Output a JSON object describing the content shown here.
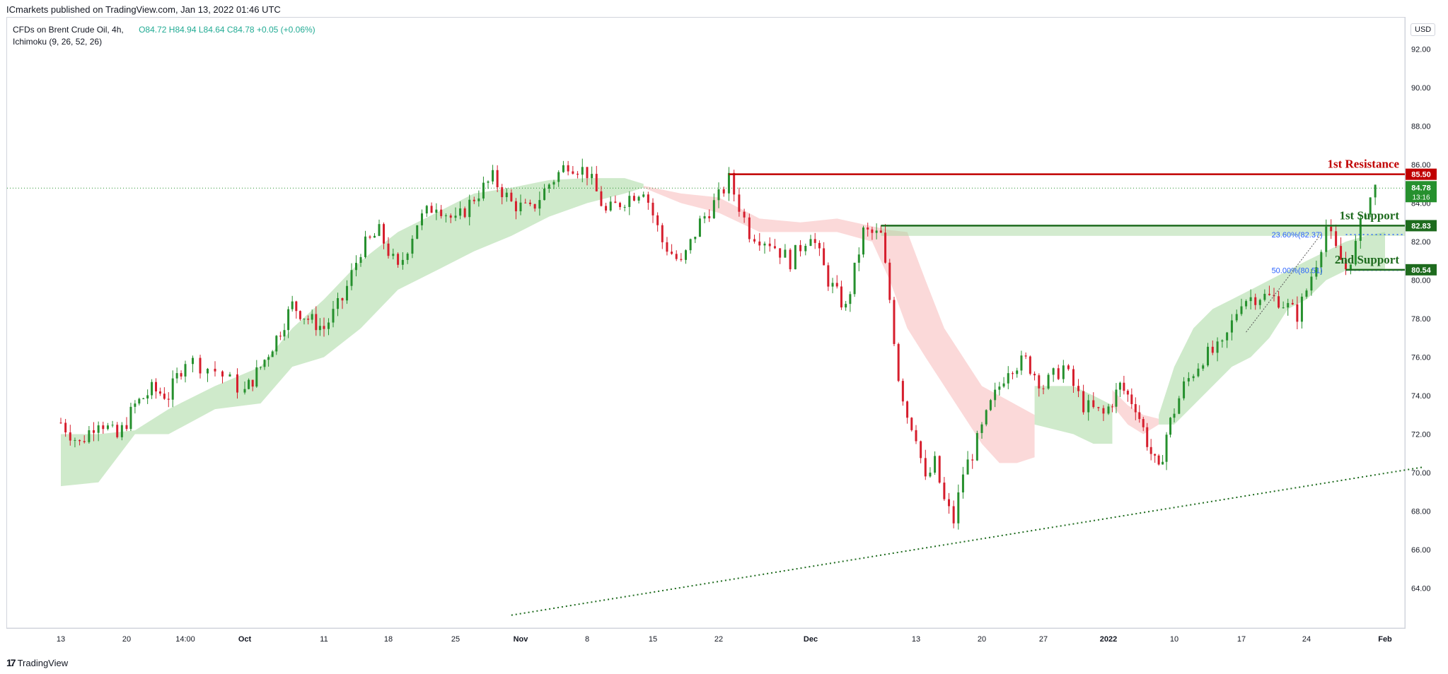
{
  "attribution": "ICmarkets published on TradingView.com, Jan 13, 2022 01:46 UTC",
  "legend": {
    "symbol_line": "CFDs on Brent Crude Oil, 4h,",
    "indicator_line": "Ichimoku (9, 26, 52, 26)",
    "open": "O84.72",
    "high": "H84.94",
    "low": "L84.64",
    "close": "C84.78",
    "change": "+0.05 (+0.06%)"
  },
  "currency": "USD",
  "footer": {
    "brand": "TradingView"
  },
  "colors": {
    "up": "#22ab94",
    "down": "#f23645",
    "candle_up": "#26902e",
    "candle_down": "#d61e2d",
    "resistance": "#c00000",
    "support": "#1e6b1e",
    "cloud_green": "#a7d8a0",
    "cloud_red": "#f7b9b9",
    "fib": "#2962ff"
  },
  "chart_data": {
    "type": "candlestick",
    "title": "CFDs on Brent Crude Oil, 4h",
    "ylim": [
      62.6,
      93.2
    ],
    "y_ticks": [
      "92.00",
      "90.00",
      "88.00",
      "86.00",
      "84.00",
      "82.00",
      "80.00",
      "78.00",
      "76.00",
      "74.00",
      "72.00",
      "70.00",
      "68.00",
      "66.00",
      "64.00"
    ],
    "y_tick_values": [
      92,
      90,
      88,
      86,
      84,
      82,
      80,
      78,
      76,
      74,
      72,
      70,
      68,
      66,
      64
    ],
    "x_labels": [
      "13",
      "20",
      "14:00",
      "Oct",
      "11",
      "18",
      "25",
      "Nov",
      "8",
      "15",
      "22",
      "Dec",
      "13",
      "20",
      "27",
      "2022",
      "10",
      "17",
      "24",
      "Feb"
    ],
    "bold_x_labels": [
      "Oct",
      "Nov",
      "Dec",
      "2022",
      "Feb"
    ],
    "x_range_days": [
      0,
      146
    ],
    "x_label_days": [
      0,
      7,
      14,
      18,
      28,
      35,
      42,
      49,
      56,
      63,
      70,
      79,
      91,
      98,
      105,
      111.5,
      120,
      127,
      134,
      142
    ],
    "series_close_outline": [
      {
        "d": 0,
        "v": 72.6
      },
      {
        "d": 2,
        "v": 71.5
      },
      {
        "d": 4,
        "v": 72.8
      },
      {
        "d": 6,
        "v": 71.8
      },
      {
        "d": 8,
        "v": 73.5
      },
      {
        "d": 10,
        "v": 74.3
      },
      {
        "d": 12,
        "v": 74.0
      },
      {
        "d": 14,
        "v": 75.9
      },
      {
        "d": 16,
        "v": 75.3
      },
      {
        "d": 18,
        "v": 74.2
      },
      {
        "d": 20,
        "v": 75.5
      },
      {
        "d": 22,
        "v": 77.0
      },
      {
        "d": 24,
        "v": 78.7
      },
      {
        "d": 26,
        "v": 78.0
      },
      {
        "d": 28,
        "v": 77.5
      },
      {
        "d": 30,
        "v": 79.0
      },
      {
        "d": 32,
        "v": 81.6
      },
      {
        "d": 34,
        "v": 82.5
      },
      {
        "d": 36,
        "v": 80.5
      },
      {
        "d": 38,
        "v": 83.0
      },
      {
        "d": 40,
        "v": 84.0
      },
      {
        "d": 42,
        "v": 83.0
      },
      {
        "d": 44,
        "v": 84.3
      },
      {
        "d": 46,
        "v": 85.3
      },
      {
        "d": 48,
        "v": 84.0
      },
      {
        "d": 50,
        "v": 83.6
      },
      {
        "d": 52,
        "v": 85.0
      },
      {
        "d": 54,
        "v": 86.1
      },
      {
        "d": 56,
        "v": 85.6
      },
      {
        "d": 58,
        "v": 83.5
      },
      {
        "d": 60,
        "v": 84.2
      },
      {
        "d": 62,
        "v": 84.8
      },
      {
        "d": 64,
        "v": 82.0
      },
      {
        "d": 66,
        "v": 80.8
      },
      {
        "d": 68,
        "v": 83.0
      },
      {
        "d": 70,
        "v": 84.3
      },
      {
        "d": 71,
        "v": 85.2
      },
      {
        "d": 73,
        "v": 82.5
      },
      {
        "d": 75,
        "v": 82.0
      },
      {
        "d": 77,
        "v": 81.0
      },
      {
        "d": 79,
        "v": 82.5
      },
      {
        "d": 81,
        "v": 80.0
      },
      {
        "d": 83,
        "v": 78.5
      },
      {
        "d": 85,
        "v": 82.5
      },
      {
        "d": 87,
        "v": 82.3
      },
      {
        "d": 88,
        "v": 79.0
      },
      {
        "d": 89,
        "v": 75.0
      },
      {
        "d": 90,
        "v": 73.0
      },
      {
        "d": 91,
        "v": 72.0
      },
      {
        "d": 92,
        "v": 69.5
      },
      {
        "d": 93,
        "v": 70.5
      },
      {
        "d": 94,
        "v": 68.5
      },
      {
        "d": 95,
        "v": 67.5
      },
      {
        "d": 96,
        "v": 70.0
      },
      {
        "d": 97,
        "v": 71.0
      },
      {
        "d": 99,
        "v": 73.5
      },
      {
        "d": 101,
        "v": 75.5
      },
      {
        "d": 103,
        "v": 75.8
      },
      {
        "d": 105,
        "v": 74.5
      },
      {
        "d": 107,
        "v": 75.5
      },
      {
        "d": 109,
        "v": 73.5
      },
      {
        "d": 111,
        "v": 73.0
      },
      {
        "d": 113,
        "v": 74.5
      },
      {
        "d": 115,
        "v": 73.5
      },
      {
        "d": 117,
        "v": 71.0
      },
      {
        "d": 118,
        "v": 70.0
      },
      {
        "d": 119,
        "v": 72.0
      },
      {
        "d": 121,
        "v": 74.5
      },
      {
        "d": 123,
        "v": 76.0
      },
      {
        "d": 125,
        "v": 76.5
      },
      {
        "d": 127,
        "v": 79.0
      },
      {
        "d": 129,
        "v": 79.2
      },
      {
        "d": 131,
        "v": 79.0
      },
      {
        "d": 133,
        "v": 78.2
      },
      {
        "d": 134,
        "v": 79.5
      },
      {
        "d": 135,
        "v": 81.0
      },
      {
        "d": 136,
        "v": 82.8
      },
      {
        "d": 137,
        "v": 81.5
      },
      {
        "d": 138,
        "v": 80.6
      },
      {
        "d": 139,
        "v": 81.8
      },
      {
        "d": 140,
        "v": 83.8
      },
      {
        "d": 141,
        "v": 84.78
      }
    ],
    "ichimoku_cloud_green": [
      {
        "d": 0,
        "a": 72.0,
        "b": 69.3
      },
      {
        "d": 4,
        "a": 72.0,
        "b": 69.5
      },
      {
        "d": 8,
        "a": 72.2,
        "b": 72.0
      },
      {
        "d": 12,
        "a": 73.3,
        "b": 72.0
      },
      {
        "d": 16,
        "a": 74.5,
        "b": 73.3
      },
      {
        "d": 20,
        "a": 75.5,
        "b": 73.6
      },
      {
        "d": 24,
        "a": 77.5,
        "b": 75.5
      },
      {
        "d": 28,
        "a": 79.0,
        "b": 76.0
      },
      {
        "d": 32,
        "a": 81.0,
        "b": 77.5
      },
      {
        "d": 36,
        "a": 82.5,
        "b": 79.5
      },
      {
        "d": 40,
        "a": 83.5,
        "b": 80.5
      },
      {
        "d": 44,
        "a": 84.5,
        "b": 81.5
      },
      {
        "d": 48,
        "a": 84.8,
        "b": 82.3
      },
      {
        "d": 52,
        "a": 85.2,
        "b": 83.3
      },
      {
        "d": 56,
        "a": 85.3,
        "b": 84.0
      },
      {
        "d": 60,
        "a": 85.3,
        "b": 84.5
      },
      {
        "d": 62,
        "a": 85.0,
        "b": 84.8
      }
    ],
    "ichimoku_cloud_red": [
      {
        "d": 62,
        "a": 84.8,
        "b": 84.9
      },
      {
        "d": 66,
        "a": 84.0,
        "b": 84.5
      },
      {
        "d": 70,
        "a": 83.5,
        "b": 84.3
      },
      {
        "d": 74,
        "a": 82.5,
        "b": 83.2
      },
      {
        "d": 78,
        "a": 82.5,
        "b": 83.0
      },
      {
        "d": 82,
        "a": 82.5,
        "b": 83.2
      },
      {
        "d": 86,
        "a": 82.0,
        "b": 82.8
      },
      {
        "d": 88,
        "a": 80.0,
        "b": 82.6
      },
      {
        "d": 90,
        "a": 77.5,
        "b": 82.5
      },
      {
        "d": 92,
        "a": 76.0,
        "b": 80.0
      },
      {
        "d": 94,
        "a": 74.5,
        "b": 77.5
      },
      {
        "d": 96,
        "a": 73.0,
        "b": 76.0
      },
      {
        "d": 98,
        "a": 71.5,
        "b": 74.5
      },
      {
        "d": 100,
        "a": 70.5,
        "b": 74.0
      },
      {
        "d": 102,
        "a": 70.5,
        "b": 73.5
      },
      {
        "d": 104,
        "a": 70.8,
        "b": 73.0
      }
    ],
    "ichimoku_cloud_green_2": [
      {
        "d": 104,
        "a": 74.5,
        "b": 72.5
      },
      {
        "d": 108,
        "a": 74.5,
        "b": 72.0
      },
      {
        "d": 110,
        "a": 74.0,
        "b": 71.5
      },
      {
        "d": 112,
        "a": 73.5,
        "b": 71.5
      }
    ],
    "ichimoku_cloud_red_2": [
      {
        "d": 112,
        "a": 73.5,
        "b": 74.3
      },
      {
        "d": 114,
        "a": 72.5,
        "b": 73.5
      },
      {
        "d": 116,
        "a": 72.0,
        "b": 73.0
      },
      {
        "d": 118,
        "a": 72.5,
        "b": 72.8
      }
    ],
    "ichimoku_cloud_green_3": [
      {
        "d": 118,
        "a": 73.0,
        "b": 72.5
      },
      {
        "d": 120,
        "a": 75.5,
        "b": 72.5
      },
      {
        "d": 122,
        "a": 77.5,
        "b": 73.5
      },
      {
        "d": 124,
        "a": 78.5,
        "b": 74.5
      },
      {
        "d": 126,
        "a": 79.0,
        "b": 75.5
      },
      {
        "d": 128,
        "a": 79.5,
        "b": 76.0
      },
      {
        "d": 130,
        "a": 80.0,
        "b": 77.0
      },
      {
        "d": 132,
        "a": 80.5,
        "b": 78.5
      },
      {
        "d": 134,
        "a": 81.0,
        "b": 79.0
      },
      {
        "d": 136,
        "a": 81.5,
        "b": 80.0
      },
      {
        "d": 138,
        "a": 82.0,
        "b": 80.5
      },
      {
        "d": 140,
        "a": 82.3,
        "b": 80.5
      },
      {
        "d": 142,
        "a": 82.5,
        "b": 80.6
      }
    ],
    "levels": [
      {
        "name": "1st Resistance",
        "value": 85.5,
        "label": "85.50",
        "start_day": 71,
        "kind": "resistance"
      },
      {
        "name": "1st Support",
        "value": 82.83,
        "label": "82.83",
        "start_day": 87,
        "kind": "support"
      },
      {
        "name": "2nd Support",
        "value": 80.54,
        "label": "80.54",
        "start_day": 138,
        "kind": "support"
      }
    ],
    "fib_levels": [
      {
        "label": "23.60%(82.37)",
        "value": 82.37,
        "start_day": 131
      },
      {
        "label": "50.00%(80.51)",
        "value": 80.51,
        "start_day": 131
      }
    ],
    "current_price": {
      "value": 84.78,
      "label": "84.78",
      "countdown": "13:16"
    },
    "last_price_line": 84.78,
    "trendline": {
      "from": {
        "d": 48,
        "v": 62.6
      },
      "to": {
        "d": 146,
        "v": 70.3
      }
    }
  }
}
